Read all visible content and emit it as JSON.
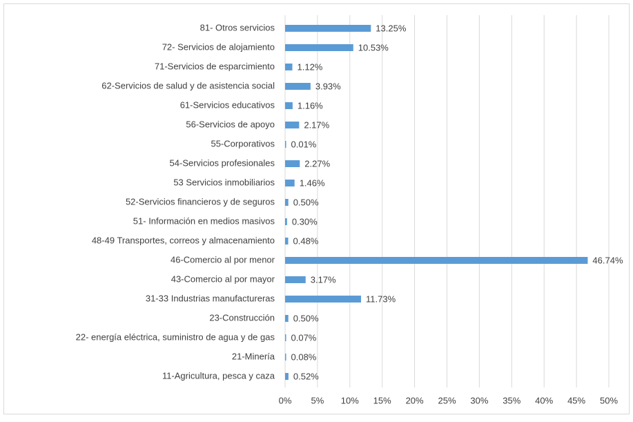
{
  "chart_data": {
    "type": "bar",
    "orientation": "horizontal",
    "categories": [
      "81- Otros servicios",
      "72- Servicios de alojamiento",
      "71-Servicios de esparcimiento",
      "62-Servicios de salud y de asistencia social",
      "61-Servicios educativos",
      "56-Servicios de apoyo",
      "55-Corporativos",
      "54-Servicios profesionales",
      "53 Servicios inmobiliarios",
      "52-Servicios financieros y de seguros",
      "51- Información en medios masivos",
      "48-49 Transportes, correos y almacenamiento",
      "46-Comercio al por menor",
      "43-Comercio al por mayor",
      "31-33 Industrias manufactureras",
      "23-Construcción",
      "22- energía eléctrica, suministro de agua y de gas",
      "21-Minería",
      "11-Agricultura, pesca y caza"
    ],
    "values": [
      13.25,
      10.53,
      1.12,
      3.93,
      1.16,
      2.17,
      0.01,
      2.27,
      1.46,
      0.5,
      0.3,
      0.48,
      46.74,
      3.17,
      11.73,
      0.5,
      0.07,
      0.08,
      0.52
    ],
    "value_labels": [
      "13.25%",
      "10.53%",
      "1.12%",
      "3.93%",
      "1.16%",
      "2.17%",
      "0.01%",
      "2.27%",
      "1.46%",
      "0.50%",
      "0.30%",
      "0.48%",
      "46.74%",
      "3.17%",
      "11.73%",
      "0.50%",
      "0.07%",
      "0.08%",
      "0.52%"
    ],
    "color": "#5b9bd5",
    "xlim": [
      0,
      50
    ],
    "xticks": [
      {
        "value": 0,
        "label": "0%"
      },
      {
        "value": 5,
        "label": "5%"
      },
      {
        "value": 10,
        "label": "10%"
      },
      {
        "value": 15,
        "label": "15%"
      },
      {
        "value": 20,
        "label": "20%"
      },
      {
        "value": 25,
        "label": "25%"
      },
      {
        "value": 30,
        "label": "30%"
      },
      {
        "value": 35,
        "label": "35%"
      },
      {
        "value": 40,
        "label": "40%"
      },
      {
        "value": 45,
        "label": "45%"
      },
      {
        "value": 50,
        "label": "50%"
      }
    ],
    "grid": true
  }
}
